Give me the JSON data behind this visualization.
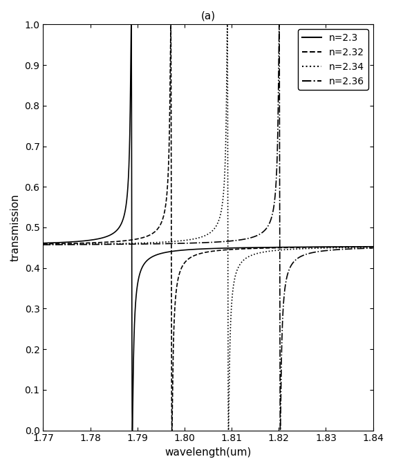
{
  "title": "(a)",
  "xlabel": "wavelength(um)",
  "ylabel": "transmission",
  "xlim": [
    1.77,
    1.84
  ],
  "ylim": [
    0,
    1
  ],
  "xticks": [
    1.77,
    1.78,
    1.79,
    1.8,
    1.81,
    1.82,
    1.83,
    1.84
  ],
  "yticks": [
    0,
    0.1,
    0.2,
    0.3,
    0.4,
    0.5,
    0.6,
    0.7,
    0.8,
    0.9,
    1.0
  ],
  "series": [
    {
      "n": 2.3,
      "lam0": 1.7888,
      "linestyle": "solid",
      "label": "n=2.3"
    },
    {
      "n": 2.32,
      "lam0": 1.7972,
      "linestyle": "dashed",
      "label": "n=2.32"
    },
    {
      "n": 2.34,
      "lam0": 1.8092,
      "linestyle": "dotted",
      "label": "n=2.34"
    },
    {
      "n": 2.36,
      "lam0": 1.8202,
      "linestyle": "dashdot",
      "label": "n=2.36"
    }
  ],
  "gamma": 0.00012,
  "q_factor": 60.0,
  "bg": 0.455,
  "linewidth": 1.2,
  "color": "black"
}
